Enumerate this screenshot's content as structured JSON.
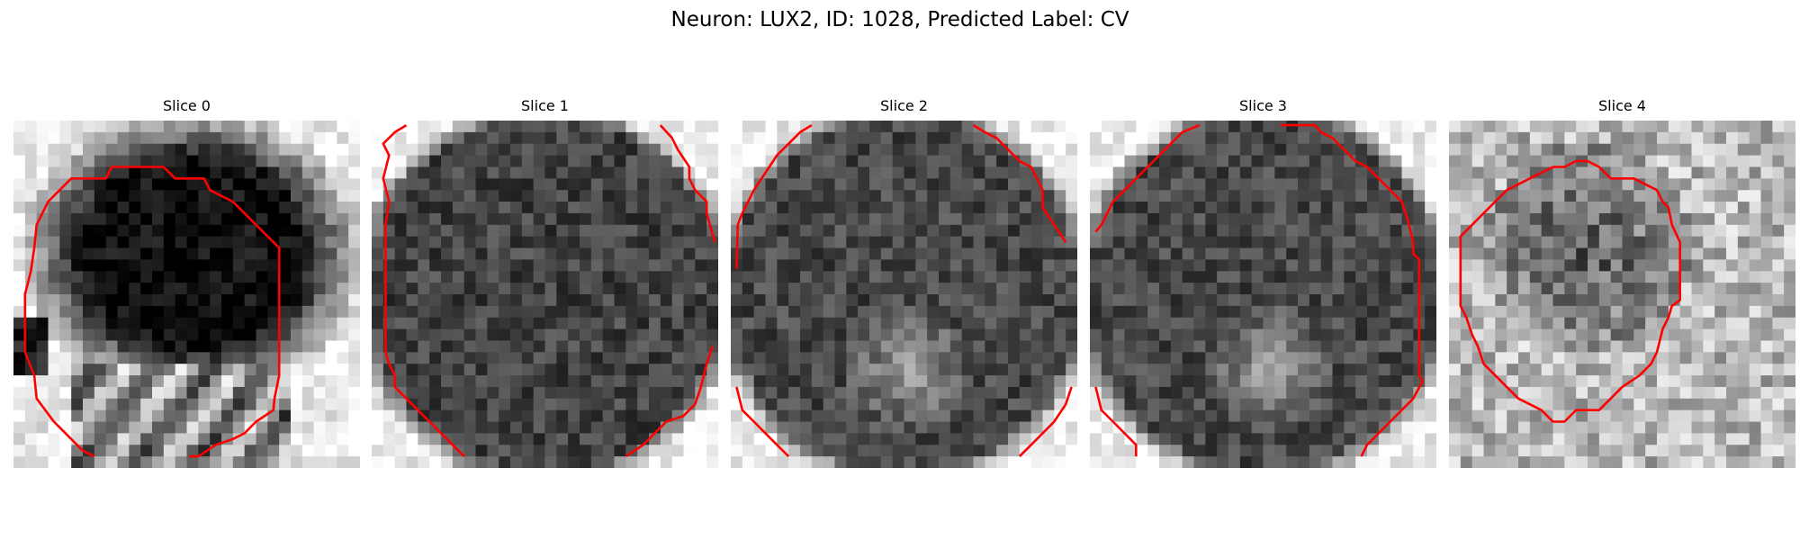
{
  "figure": {
    "title": "Neuron: LUX2, ID: 1028, Predicted Label: CV",
    "contour_color": "#ff0000"
  },
  "slices": [
    {
      "title": "Slice 0",
      "pattern": "dark-blob-upper-center",
      "contour": "closed-loop-left"
    },
    {
      "title": "Slice 1",
      "pattern": "textured-dark-disc",
      "contour": "arc-partial-sides"
    },
    {
      "title": "Slice 2",
      "pattern": "disc-bright-lower-center",
      "contour": "arc-partial-sides"
    },
    {
      "title": "Slice 3",
      "pattern": "disc-bright-lower-center",
      "contour": "arc-partial-sides"
    },
    {
      "title": "Slice 4",
      "pattern": "bright-noisy-center-dark",
      "contour": "closed-loop-center"
    }
  ]
}
